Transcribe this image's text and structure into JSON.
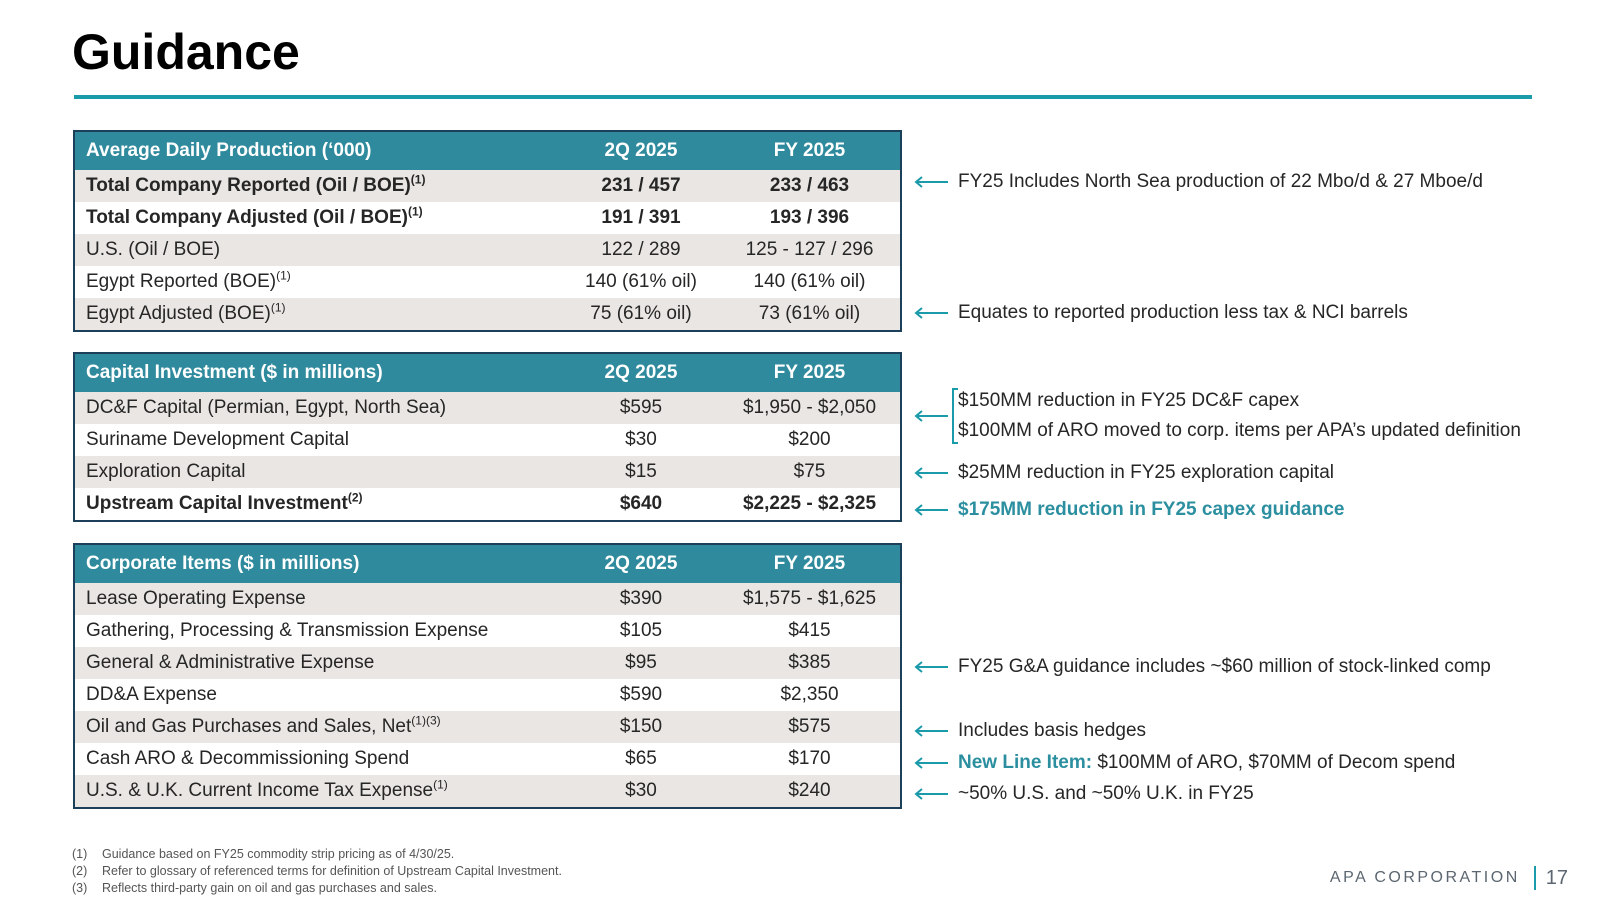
{
  "title": "Guidance",
  "colors": {
    "accent": "#1b9aaa",
    "header_bg": "#2e8a9c",
    "stripe": "#e9e6e3",
    "border": "#1c3f5a"
  },
  "production": {
    "header": [
      "Average Daily Production (‘000)",
      "2Q 2025",
      "FY 2025"
    ],
    "rows": [
      {
        "label": "Total Company Reported (Oil / BOE)",
        "sup": "(1)",
        "q": "231 / 457",
        "fy": "233 / 463"
      },
      {
        "label": "Total Company Adjusted (Oil / BOE)",
        "sup": "(1)",
        "q": "191 / 391",
        "fy": "193 / 396"
      },
      {
        "label": "U.S. (Oil / BOE)",
        "sup": "",
        "q": "122 / 289",
        "fy": "125 - 127  / 296"
      },
      {
        "label": "Egypt Reported (BOE)",
        "sup": "(1)",
        "q": "140 (61% oil)",
        "fy": "140 (61% oil)"
      },
      {
        "label": "Egypt Adjusted (BOE)",
        "sup": "(1)",
        "q": "75 (61% oil)",
        "fy": "73 (61% oil)"
      }
    ]
  },
  "capital": {
    "header": [
      "Capital Investment ($ in millions)",
      "2Q 2025",
      "FY 2025"
    ],
    "rows": [
      {
        "label": "DC&F Capital (Permian, Egypt, North Sea)",
        "sup": "",
        "q": "$595",
        "fy": "$1,950 - $2,050"
      },
      {
        "label": "Suriname Development Capital",
        "sup": "",
        "q": "$30",
        "fy": "$200"
      },
      {
        "label": "Exploration Capital",
        "sup": "",
        "q": "$15",
        "fy": "$75"
      },
      {
        "label": "Upstream Capital Investment",
        "sup": "(2)",
        "q": "$640",
        "fy": "$2,225 - $2,325"
      }
    ]
  },
  "corporate": {
    "header": [
      "Corporate Items ($ in millions)",
      "2Q 2025",
      "FY 2025"
    ],
    "rows": [
      {
        "label": "Lease Operating Expense",
        "sup": "",
        "q": "$390",
        "fy": "$1,575 - $1,625"
      },
      {
        "label": "Gathering, Processing & Transmission Expense",
        "sup": "",
        "q": "$105",
        "fy": "$415"
      },
      {
        "label": "General & Administrative Expense",
        "sup": "",
        "q": "$95",
        "fy": "$385"
      },
      {
        "label": "DD&A Expense",
        "sup": "",
        "q": "$590",
        "fy": "$2,350"
      },
      {
        "label": "Oil and Gas Purchases and Sales, Net",
        "sup": "(1)(3)",
        "q": "$150",
        "fy": "$575"
      },
      {
        "label": "Cash ARO & Decommissioning Spend",
        "sup": "",
        "q": "$65",
        "fy": "$170"
      },
      {
        "label": "U.S. & U.K. Current Income Tax Expense",
        "sup": "(1)",
        "q": "$30",
        "fy": "$240"
      }
    ]
  },
  "notes": {
    "north_sea": "FY25 Includes North Sea production of 22 Mbo/d & 27 Mboe/d",
    "equates": "Equates to reported production less tax & NCI barrels",
    "dcf_reduction": "$150MM reduction in FY25 DC&F capex",
    "aro_moved": "$100MM of ARO moved to corp. items per APA’s updated definition",
    "exploration": "$25MM reduction in FY25 exploration capital",
    "capex": "$175MM reduction in FY25 capex guidance",
    "ga": "FY25 G&A guidance includes ~$60 million of stock-linked comp",
    "basis": "Includes basis hedges",
    "new_line_label": "New Line Item:",
    "new_line_text": " $100MM of ARO, $70MM of Decom spend",
    "tax": "~50% U.S. and ~50% U.K. in FY25"
  },
  "footnotes": [
    {
      "n": "(1)",
      "text": "Guidance based on FY25 commodity strip pricing as of 4/30/25."
    },
    {
      "n": "(2)",
      "text": "Refer to glossary of referenced terms for definition of Upstream Capital Investment."
    },
    {
      "n": "(3)",
      "text": "Reflects third-party gain on oil and gas purchases and sales."
    }
  ],
  "footer": {
    "brand": "APA CORPORATION",
    "page": "17"
  }
}
